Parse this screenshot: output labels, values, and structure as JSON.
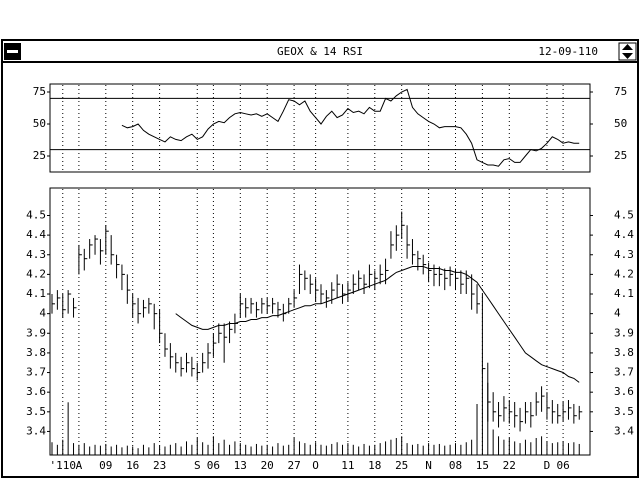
{
  "window": {
    "title": "GEOX & 14 RSI",
    "date": "12-09-110"
  },
  "chart_data": [
    {
      "type": "line",
      "values": [
        null,
        null,
        null,
        null,
        null,
        null,
        null,
        null,
        null,
        null,
        null,
        null,
        null,
        49,
        47,
        48,
        50,
        45,
        42,
        40,
        38,
        36,
        40,
        38,
        37,
        40,
        42,
        38,
        40,
        46,
        50,
        52,
        51,
        55,
        58,
        59,
        58,
        57,
        58,
        56,
        58,
        55,
        52,
        60,
        69,
        68,
        65,
        68,
        60,
        55,
        50,
        56,
        60,
        55,
        57,
        62,
        59,
        60,
        58,
        63,
        60,
        60,
        70,
        68,
        72,
        75,
        77,
        63,
        58,
        55,
        52,
        50,
        47,
        48,
        48,
        48,
        47,
        42,
        35,
        22,
        20,
        18,
        18,
        17,
        22,
        23,
        20,
        20,
        25,
        30,
        29,
        31,
        35,
        40,
        38,
        35,
        36,
        35,
        35
      ],
      "ylim": [
        12.5,
        81.25
      ],
      "yticks": [
        25,
        50,
        75
      ],
      "hlines": [
        30,
        70
      ],
      "color": "#000000"
    },
    {
      "type": "hlc",
      "categories": [
        null,
        null,
        "'110",
        null,
        null,
        "A",
        null,
        null,
        null,
        null,
        "09",
        null,
        null,
        null,
        null,
        "16",
        null,
        null,
        null,
        null,
        "23",
        null,
        null,
        null,
        null,
        null,
        null,
        "S",
        null,
        null,
        "06",
        null,
        null,
        null,
        null,
        "13",
        null,
        null,
        null,
        null,
        "20",
        null,
        null,
        null,
        null,
        "27",
        null,
        null,
        null,
        "O",
        null,
        null,
        null,
        null,
        null,
        "11",
        null,
        null,
        null,
        null,
        "18",
        null,
        null,
        null,
        null,
        "25",
        null,
        null,
        null,
        null,
        "N",
        null,
        null,
        null,
        null,
        "08",
        null,
        null,
        null,
        null,
        "15",
        null,
        null,
        null,
        null,
        "22",
        null,
        null,
        null,
        null,
        null,
        null,
        "D",
        null,
        null,
        "06",
        null,
        null,
        null
      ],
      "high": [
        4.1,
        4.12,
        4.1,
        4.12,
        4.08,
        4.35,
        4.33,
        4.38,
        4.4,
        4.38,
        4.45,
        4.4,
        4.3,
        4.25,
        4.2,
        4.1,
        4.08,
        4.07,
        4.08,
        4.05,
        4.02,
        3.9,
        3.85,
        3.8,
        3.78,
        3.8,
        3.78,
        3.75,
        3.8,
        3.85,
        3.9,
        3.95,
        3.95,
        3.96,
        4.0,
        4.1,
        4.08,
        4.08,
        4.06,
        4.08,
        4.08,
        4.08,
        4.06,
        4.05,
        4.08,
        4.12,
        4.25,
        4.22,
        4.2,
        4.18,
        4.15,
        4.12,
        4.16,
        4.2,
        4.15,
        4.16,
        4.2,
        4.22,
        4.2,
        4.25,
        4.22,
        4.25,
        4.28,
        4.42,
        4.45,
        4.52,
        4.45,
        4.38,
        4.32,
        4.3,
        4.26,
        4.25,
        4.24,
        4.23,
        4.24,
        4.23,
        4.22,
        4.22,
        4.2,
        4.15,
        4.1,
        3.75,
        3.6,
        3.55,
        3.58,
        3.56,
        3.55,
        3.52,
        3.55,
        3.55,
        3.6,
        3.63,
        3.6,
        3.56,
        3.54,
        3.55,
        3.56,
        3.54,
        3.53
      ],
      "low": [
        4.0,
        4.02,
        3.98,
        4.0,
        3.98,
        4.2,
        4.22,
        4.28,
        4.3,
        4.25,
        4.3,
        4.25,
        4.18,
        4.12,
        4.05,
        3.98,
        3.95,
        3.98,
        4.0,
        3.92,
        3.85,
        3.78,
        3.72,
        3.7,
        3.68,
        3.7,
        3.68,
        3.66,
        3.7,
        3.72,
        3.78,
        3.85,
        3.75,
        3.85,
        3.9,
        3.98,
        3.98,
        4.0,
        3.98,
        4.0,
        4.0,
        4.0,
        3.98,
        3.96,
        4.0,
        4.03,
        4.1,
        4.12,
        4.1,
        4.06,
        4.05,
        4.03,
        4.05,
        4.08,
        4.05,
        4.06,
        4.1,
        4.12,
        4.1,
        4.13,
        4.12,
        4.15,
        4.15,
        4.28,
        4.32,
        4.38,
        4.28,
        4.25,
        4.22,
        4.2,
        4.16,
        4.14,
        4.14,
        4.12,
        4.14,
        4.12,
        4.1,
        4.1,
        4.02,
        4.0,
        3.7,
        3.45,
        3.45,
        3.42,
        3.45,
        3.44,
        3.42,
        3.4,
        3.44,
        3.42,
        3.48,
        3.5,
        3.46,
        3.44,
        3.44,
        3.45,
        3.46,
        3.44,
        3.46
      ],
      "close": [
        4.05,
        4.08,
        4.02,
        4.1,
        4.03,
        4.3,
        4.28,
        4.35,
        4.38,
        4.32,
        4.42,
        4.3,
        4.25,
        4.2,
        4.12,
        4.05,
        4.0,
        4.03,
        4.05,
        4.0,
        3.9,
        3.82,
        3.78,
        3.75,
        3.72,
        3.75,
        3.72,
        3.7,
        3.75,
        3.8,
        3.85,
        3.9,
        3.88,
        3.92,
        3.95,
        4.05,
        4.03,
        4.05,
        4.02,
        4.05,
        4.04,
        4.05,
        4.02,
        4.0,
        4.05,
        4.08,
        4.2,
        4.18,
        4.15,
        4.12,
        4.1,
        4.08,
        4.12,
        4.15,
        4.1,
        4.12,
        4.15,
        4.18,
        4.15,
        4.2,
        4.18,
        4.2,
        4.22,
        4.35,
        4.4,
        4.45,
        4.35,
        4.3,
        4.28,
        4.25,
        4.22,
        4.2,
        4.2,
        4.18,
        4.2,
        4.18,
        4.15,
        4.18,
        4.1,
        4.05,
        3.72,
        3.55,
        3.5,
        3.48,
        3.52,
        3.5,
        3.48,
        3.45,
        3.5,
        3.48,
        3.55,
        3.58,
        3.52,
        3.5,
        3.48,
        3.5,
        3.52,
        3.48,
        3.5
      ],
      "ma": [
        null,
        null,
        null,
        null,
        null,
        null,
        null,
        null,
        null,
        null,
        null,
        null,
        null,
        null,
        null,
        null,
        null,
        null,
        null,
        null,
        null,
        null,
        null,
        4.0,
        3.98,
        3.96,
        3.94,
        3.93,
        3.92,
        3.92,
        3.93,
        3.94,
        3.94,
        3.95,
        3.95,
        3.96,
        3.96,
        3.97,
        3.97,
        3.98,
        3.98,
        3.99,
        3.99,
        4.0,
        4.01,
        4.02,
        4.03,
        4.04,
        4.04,
        4.05,
        4.05,
        4.06,
        4.07,
        4.08,
        4.09,
        4.1,
        4.11,
        4.12,
        4.13,
        4.14,
        4.15,
        4.16,
        4.17,
        4.19,
        4.21,
        4.22,
        4.23,
        4.24,
        4.24,
        4.24,
        4.23,
        4.23,
        4.23,
        4.22,
        4.22,
        4.21,
        4.21,
        4.2,
        4.18,
        4.16,
        4.12,
        4.08,
        4.04,
        4.0,
        3.96,
        3.92,
        3.88,
        3.84,
        3.8,
        3.78,
        3.76,
        3.74,
        3.73,
        3.72,
        3.71,
        3.7,
        3.68,
        3.67,
        3.65
      ],
      "volume": [
        15,
        12,
        18,
        62,
        14,
        12,
        14,
        10,
        12,
        11,
        13,
        10,
        12,
        9,
        11,
        10,
        8,
        12,
        9,
        14,
        11,
        10,
        12,
        14,
        10,
        16,
        12,
        20,
        15,
        12,
        22,
        14,
        18,
        12,
        16,
        14,
        12,
        10,
        13,
        11,
        12,
        10,
        14,
        11,
        12,
        20,
        16,
        14,
        12,
        15,
        12,
        11,
        13,
        15,
        12,
        14,
        12,
        10,
        13,
        11,
        12,
        14,
        16,
        18,
        20,
        22,
        14,
        12,
        13,
        11,
        14,
        12,
        13,
        11,
        12,
        14,
        12,
        15,
        18,
        60,
        100,
        85,
        30,
        22,
        18,
        20,
        16,
        14,
        18,
        15,
        20,
        22,
        16,
        14,
        15,
        16,
        14,
        15,
        13
      ],
      "vlim": [
        0,
        100
      ],
      "ylim": [
        3.28,
        4.64
      ],
      "yticks": [
        3.4,
        3.5,
        3.6,
        3.7,
        3.8,
        3.9,
        4.0,
        4.1,
        4.2,
        4.3,
        4.4,
        4.5
      ],
      "color": "#000000"
    }
  ]
}
